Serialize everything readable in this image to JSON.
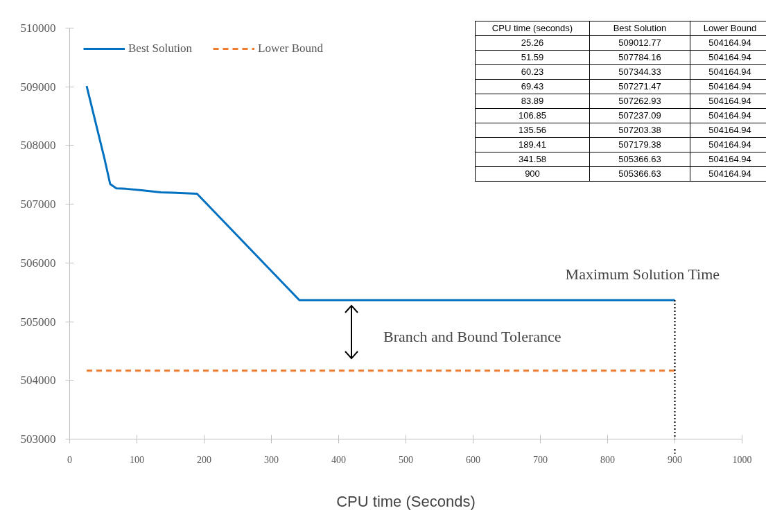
{
  "chart_data": {
    "type": "line",
    "xlabel": "CPU time (Seconds)",
    "x": [
      25.26,
      51.59,
      60.23,
      69.43,
      83.89,
      106.85,
      135.56,
      189.41,
      341.58,
      900
    ],
    "series": [
      {
        "name": "Best Solution",
        "color": "#0070c0",
        "line_style": "solid",
        "values": [
          509012.77,
          507784.16,
          507344.33,
          507271.47,
          507262.93,
          507237.09,
          507203.38,
          507179.38,
          505366.63,
          505366.63
        ]
      },
      {
        "name": "Lower Bound",
        "color": "#ed7d31",
        "line_style": "dashed",
        "values": [
          504164.94,
          504164.94,
          504164.94,
          504164.94,
          504164.94,
          504164.94,
          504164.94,
          504164.94,
          504164.94,
          504164.94
        ]
      }
    ],
    "xlim": [
      0,
      1000
    ],
    "xticks": [
      0,
      100,
      200,
      300,
      400,
      500,
      600,
      700,
      800,
      900,
      1000
    ],
    "ylim": [
      503000,
      510000
    ],
    "yticks": [
      503000,
      504000,
      505000,
      506000,
      507000,
      508000,
      509000,
      510000
    ],
    "grid": false,
    "legend": "top left",
    "marker": "none",
    "ref_lines": [
      {
        "axis": "x",
        "value": 900,
        "label": "Maximum Solution Time",
        "line_style": "dotted",
        "color": "#000000"
      }
    ],
    "annotations": [
      "CPU time (seconds)",
      "Best Solution",
      "Lower Bound",
      "25.26",
      "509012.77",
      "504164.94",
      "51.59",
      "507784.16",
      "504164.94",
      "60.23",
      "507344.33",
      "504164.94",
      "69.43",
      "507271.47",
      "504164.94",
      "83.89",
      "507262.93",
      "504164.94",
      "106.85",
      "507237.09",
      "504164.94",
      "135.56",
      "507203.38",
      "504164.94",
      "189.41",
      "507179.38",
      "504164.94",
      "341.58",
      "505366.63",
      "504164.94",
      "900",
      "505366.63",
      "504164.94",
      "Branch and Bound Tolerance"
    ]
  }
}
